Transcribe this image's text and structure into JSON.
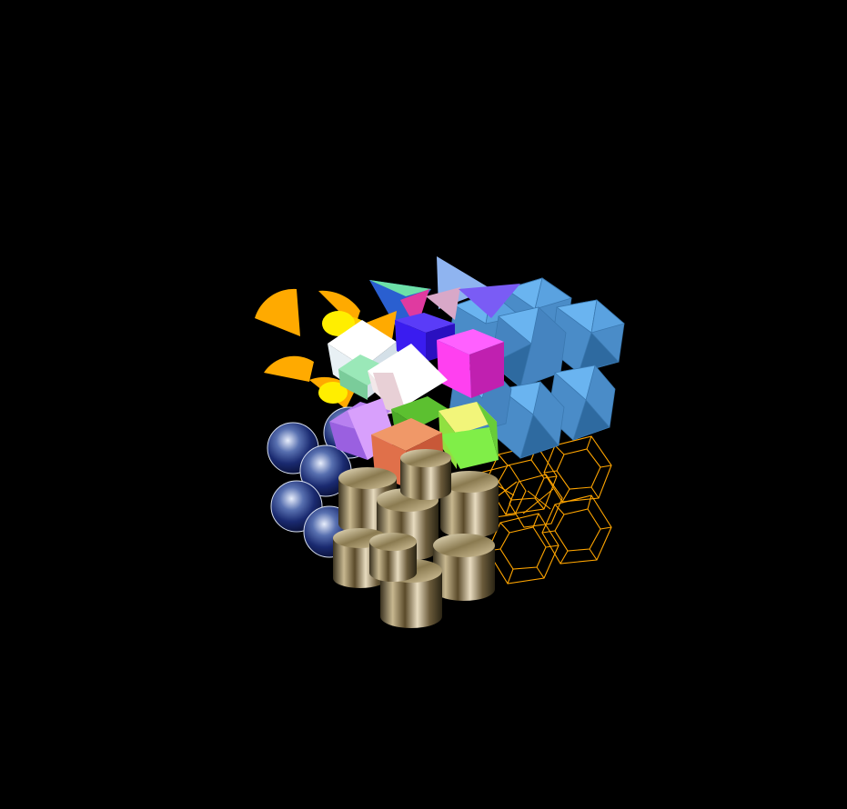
{
  "scene": {
    "background_color": "#000000",
    "groups": [
      {
        "name": "cone-wedge-group",
        "shape": "cone-wedge",
        "count": 6,
        "color": "#ffaa00",
        "highlight": "#ffee00"
      },
      {
        "name": "tetrahedron-group",
        "shape": "tetrahedron",
        "count": 6,
        "colors": [
          "#8fb4f0",
          "#2a5fd0",
          "#6de0a8",
          "#e03aa0",
          "#d8a8c8",
          "#7a5cf5"
        ]
      },
      {
        "name": "cube-group",
        "shape": "cube",
        "count": 9,
        "colors": [
          "#ffffff",
          "#3a1cf0",
          "#ff40f0",
          "#9ae8b8",
          "#f3e8ea",
          "#4caa28",
          "#c890f8",
          "#f2f57a",
          "#e0704a"
        ]
      },
      {
        "name": "icosahedron-group",
        "shape": "icosahedron",
        "count": 7,
        "color": "#5aa2e0"
      },
      {
        "name": "earth-sphere-group",
        "shape": "textured-sphere",
        "count": 6,
        "texture": "earth"
      },
      {
        "name": "marble-cylinder-group",
        "shape": "textured-cylinder",
        "count": 8,
        "texture": "marble"
      },
      {
        "name": "wireframe-dodecahedron-group",
        "shape": "wireframe-dodecahedron",
        "count": 6,
        "color": "#ffa500"
      }
    ]
  }
}
